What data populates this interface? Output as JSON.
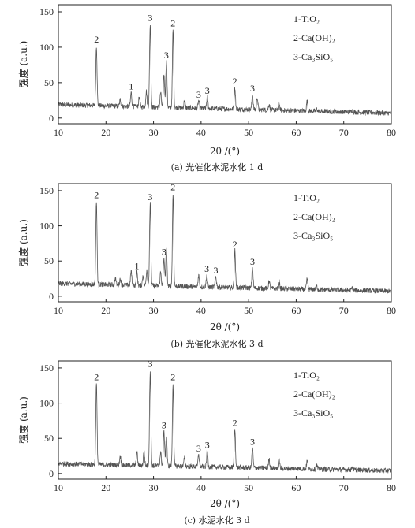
{
  "chart_data": [
    {
      "type": "line",
      "caption": "(a) 光催化水泥水化 1 d",
      "xlabel": "2θ /(°)",
      "ylabel": "强度 (a.u.)",
      "xlim": [
        10,
        80
      ],
      "ylim": [
        -8,
        160
      ],
      "xticks": [
        10,
        20,
        30,
        40,
        50,
        60,
        70,
        80
      ],
      "yticks": [
        0,
        50,
        100,
        150
      ],
      "legend": [
        "1-TiO₂",
        "2-Ca(OH)₂",
        "3-Ca₃SiO₅"
      ],
      "legend_position": "top-right",
      "baseline": {
        "at_10": 19,
        "at_80": 7
      },
      "peaks": [
        {
          "x": 18.0,
          "y": 102,
          "label": "2"
        },
        {
          "x": 23.0,
          "y": 26,
          "label": ""
        },
        {
          "x": 25.3,
          "y": 36,
          "label": "1"
        },
        {
          "x": 27.0,
          "y": 30,
          "label": ""
        },
        {
          "x": 28.5,
          "y": 38,
          "label": ""
        },
        {
          "x": 29.3,
          "y": 133,
          "label": "3"
        },
        {
          "x": 31.5,
          "y": 36,
          "label": ""
        },
        {
          "x": 32.2,
          "y": 62,
          "label": ""
        },
        {
          "x": 32.7,
          "y": 80,
          "label": "3"
        },
        {
          "x": 34.1,
          "y": 125,
          "label": "2"
        },
        {
          "x": 36.5,
          "y": 25,
          "label": ""
        },
        {
          "x": 39.5,
          "y": 24,
          "label": "3"
        },
        {
          "x": 41.3,
          "y": 30,
          "label": "3"
        },
        {
          "x": 47.1,
          "y": 43,
          "label": "2"
        },
        {
          "x": 50.8,
          "y": 33,
          "label": "3"
        },
        {
          "x": 51.8,
          "y": 30,
          "label": ""
        },
        {
          "x": 54.3,
          "y": 20,
          "label": ""
        },
        {
          "x": 56.4,
          "y": 22,
          "label": ""
        },
        {
          "x": 62.3,
          "y": 24,
          "label": ""
        },
        {
          "x": 64.3,
          "y": 13,
          "label": ""
        },
        {
          "x": 71.8,
          "y": 11,
          "label": ""
        }
      ]
    },
    {
      "type": "line",
      "caption": "(b) 光催化水泥水化 3 d",
      "xlabel": "2θ /(°)",
      "ylabel": "强度 (a.u.)",
      "xlim": [
        10,
        80
      ],
      "ylim": [
        -8,
        160
      ],
      "xticks": [
        10,
        20,
        30,
        40,
        50,
        60,
        70,
        80
      ],
      "yticks": [
        0,
        50,
        100,
        150
      ],
      "legend": [
        "1-TiO₂",
        "2-Ca(OH)₂",
        "3-Ca₃SiO₅"
      ],
      "legend_position": "top-right",
      "baseline": {
        "at_10": 18,
        "at_80": 7
      },
      "peaks": [
        {
          "x": 18.0,
          "y": 135,
          "label": "2"
        },
        {
          "x": 22.0,
          "y": 26,
          "label": ""
        },
        {
          "x": 23.0,
          "y": 25,
          "label": ""
        },
        {
          "x": 25.3,
          "y": 36,
          "label": ""
        },
        {
          "x": 26.5,
          "y": 34,
          "label": "1"
        },
        {
          "x": 27.8,
          "y": 30,
          "label": ""
        },
        {
          "x": 28.6,
          "y": 38,
          "label": ""
        },
        {
          "x": 29.3,
          "y": 132,
          "label": "3"
        },
        {
          "x": 31.5,
          "y": 34,
          "label": ""
        },
        {
          "x": 32.2,
          "y": 54,
          "label": "3"
        },
        {
          "x": 32.7,
          "y": 66,
          "label": ""
        },
        {
          "x": 34.1,
          "y": 146,
          "label": "2"
        },
        {
          "x": 39.5,
          "y": 30,
          "label": ""
        },
        {
          "x": 41.2,
          "y": 30,
          "label": "3"
        },
        {
          "x": 43.1,
          "y": 28,
          "label": "3"
        },
        {
          "x": 47.1,
          "y": 65,
          "label": "2"
        },
        {
          "x": 50.8,
          "y": 40,
          "label": "3"
        },
        {
          "x": 54.3,
          "y": 22,
          "label": ""
        },
        {
          "x": 56.4,
          "y": 22,
          "label": ""
        },
        {
          "x": 62.3,
          "y": 24,
          "label": ""
        },
        {
          "x": 64.3,
          "y": 14,
          "label": ""
        },
        {
          "x": 71.8,
          "y": 12,
          "label": ""
        }
      ]
    },
    {
      "type": "line",
      "caption": "(c) 水泥水化 3 d",
      "xlabel": "2θ /(°)",
      "ylabel": "强度 (a.u.)",
      "xlim": [
        10,
        80
      ],
      "ylim": [
        -8,
        160
      ],
      "xticks": [
        10,
        20,
        30,
        40,
        50,
        60,
        70,
        80
      ],
      "yticks": [
        0,
        50,
        100,
        150
      ],
      "legend": [
        "1-TiO₂",
        "2-Ca(OH)₂",
        "3-Ca₃SiO₅"
      ],
      "legend_position": "top-right",
      "baseline": {
        "at_10": 14,
        "at_80": 4
      },
      "peaks": [
        {
          "x": 18.0,
          "y": 128,
          "label": "2"
        },
        {
          "x": 23.0,
          "y": 25,
          "label": ""
        },
        {
          "x": 26.5,
          "y": 30,
          "label": ""
        },
        {
          "x": 28.0,
          "y": 32,
          "label": ""
        },
        {
          "x": 29.3,
          "y": 147,
          "label": "3"
        },
        {
          "x": 31.5,
          "y": 30,
          "label": ""
        },
        {
          "x": 32.2,
          "y": 60,
          "label": "3"
        },
        {
          "x": 32.7,
          "y": 54,
          "label": ""
        },
        {
          "x": 34.1,
          "y": 128,
          "label": "2"
        },
        {
          "x": 36.5,
          "y": 22,
          "label": ""
        },
        {
          "x": 39.5,
          "y": 27,
          "label": "3"
        },
        {
          "x": 41.3,
          "y": 32,
          "label": "3"
        },
        {
          "x": 47.1,
          "y": 63,
          "label": "2"
        },
        {
          "x": 50.8,
          "y": 36,
          "label": "3"
        },
        {
          "x": 54.3,
          "y": 20,
          "label": ""
        },
        {
          "x": 56.4,
          "y": 20,
          "label": ""
        },
        {
          "x": 62.3,
          "y": 18,
          "label": ""
        },
        {
          "x": 64.3,
          "y": 12,
          "label": ""
        },
        {
          "x": 71.8,
          "y": 10,
          "label": ""
        }
      ]
    }
  ]
}
